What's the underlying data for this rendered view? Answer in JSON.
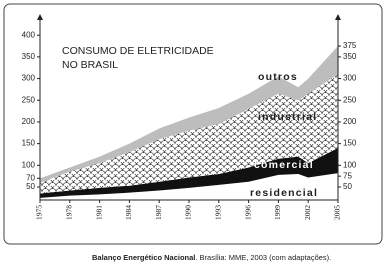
{
  "chart_data": {
    "type": "stacked-area",
    "title": [
      "CONSUMO DE ELETRICIDADE",
      "NO BRASIL"
    ],
    "x": [
      1975,
      1978,
      1981,
      1984,
      1987,
      1990,
      1993,
      1996,
      1999,
      2001,
      2002,
      2005
    ],
    "xlim": [
      1975,
      2005
    ],
    "xticks": [
      1975,
      1978,
      1981,
      1984,
      1987,
      1990,
      1993,
      1996,
      1999,
      2002,
      2005
    ],
    "ylim": [
      20,
      412
    ],
    "yticks": [
      50,
      70,
      100,
      150,
      200,
      250,
      300,
      350,
      400
    ],
    "y2lim": [
      20,
      412
    ],
    "y2ticks": [
      50,
      75,
      100,
      150,
      200,
      250,
      300,
      350,
      375
    ],
    "series": [
      {
        "name": "residencial",
        "color": "#ffffff",
        "values": [
          25,
          30,
          33,
          37,
          42,
          48,
          55,
          62,
          78,
          80,
          72,
          82
        ]
      },
      {
        "name": "comercial",
        "color": "#111111",
        "values": [
          10,
          12,
          15,
          16,
          20,
          24,
          25,
          33,
          37,
          40,
          33,
          58
        ]
      },
      {
        "name": "industrial",
        "color": "#222222",
        "pattern": "scales",
        "values": [
          25,
          43,
          57,
          77,
          98,
          108,
          115,
          135,
          150,
          130,
          160,
          170
        ]
      },
      {
        "name": "outros",
        "color": "#bdbdbd",
        "values": [
          10,
          10,
          15,
          20,
          25,
          30,
          37,
          35,
          40,
          30,
          35,
          65
        ]
      }
    ],
    "source": {
      "bold": "Balanço Energético Nacional",
      "text": ". Brasília: MME, 2003 (com adaptações)."
    }
  }
}
